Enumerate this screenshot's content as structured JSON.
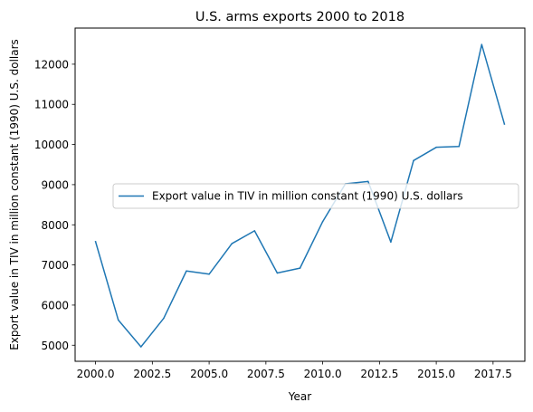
{
  "chart_data": {
    "type": "line",
    "title": "U.S. arms exports 2000 to 2018",
    "xlabel": "Year",
    "ylabel": "Export value in TIV in million constant (1990) U.S. dollars",
    "xlim": [
      1999.1,
      2018.9
    ],
    "ylim": [
      4600,
      12900
    ],
    "x_ticks": [
      2000.0,
      2002.5,
      2005.0,
      2007.5,
      2010.0,
      2012.5,
      2015.0,
      2017.5
    ],
    "x_tick_labels": [
      "2000.0",
      "2002.5",
      "2005.0",
      "2007.5",
      "2010.0",
      "2012.5",
      "2015.0",
      "2017.5"
    ],
    "y_ticks": [
      5000,
      6000,
      7000,
      8000,
      9000,
      10000,
      11000,
      12000
    ],
    "y_tick_labels": [
      "5000",
      "6000",
      "7000",
      "8000",
      "9000",
      "10000",
      "11000",
      "12000"
    ],
    "grid": false,
    "legend_position": "center-right",
    "series": [
      {
        "name": "Export value in TIV in million constant (1990) U.S. dollars",
        "color": "#1f77b4",
        "x": [
          2000,
          2001,
          2002,
          2003,
          2004,
          2005,
          2006,
          2007,
          2008,
          2009,
          2010,
          2011,
          2012,
          2013,
          2014,
          2015,
          2016,
          2017,
          2018
        ],
        "values": [
          7580,
          5630,
          4960,
          5670,
          6850,
          6770,
          7530,
          7850,
          6800,
          6920,
          8080,
          9020,
          9080,
          7570,
          9600,
          9930,
          9950,
          12490,
          10510
        ]
      }
    ]
  }
}
